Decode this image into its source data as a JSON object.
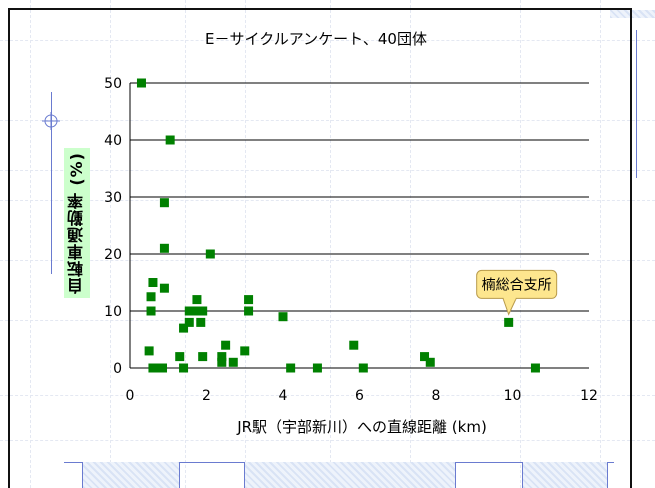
{
  "chart_data": {
    "type": "scatter",
    "title": "E－サイクルアンケート、40団体",
    "xlabel": "JR駅（宇部新川）への直線距離 (km)",
    "ylabel": "自転車通勤率 (%)",
    "xlim": [
      0,
      12
    ],
    "ylim": [
      0,
      50
    ],
    "xticks": [
      "0",
      "2",
      "4",
      "6",
      "8",
      "10",
      "12"
    ],
    "yticks": [
      "0",
      "10",
      "20",
      "30",
      "40",
      "50"
    ],
    "grid": "horizontal",
    "marker_color": "#008000",
    "points": [
      {
        "x": 0.3,
        "y": 50
      },
      {
        "x": 1.05,
        "y": 40
      },
      {
        "x": 0.9,
        "y": 29
      },
      {
        "x": 0.9,
        "y": 21
      },
      {
        "x": 2.1,
        "y": 20
      },
      {
        "x": 0.6,
        "y": 15
      },
      {
        "x": 0.9,
        "y": 14
      },
      {
        "x": 0.55,
        "y": 12.5
      },
      {
        "x": 1.75,
        "y": 12
      },
      {
        "x": 3.1,
        "y": 12
      },
      {
        "x": 0.55,
        "y": 10
      },
      {
        "x": 1.55,
        "y": 10
      },
      {
        "x": 1.7,
        "y": 10
      },
      {
        "x": 1.9,
        "y": 10
      },
      {
        "x": 3.1,
        "y": 10
      },
      {
        "x": 1.55,
        "y": 8
      },
      {
        "x": 1.85,
        "y": 8
      },
      {
        "x": 4.0,
        "y": 9
      },
      {
        "x": 9.9,
        "y": 8
      },
      {
        "x": 1.4,
        "y": 7
      },
      {
        "x": 2.5,
        "y": 4
      },
      {
        "x": 5.85,
        "y": 4
      },
      {
        "x": 0.5,
        "y": 3
      },
      {
        "x": 3.0,
        "y": 3
      },
      {
        "x": 1.3,
        "y": 2
      },
      {
        "x": 1.9,
        "y": 2
      },
      {
        "x": 2.4,
        "y": 2
      },
      {
        "x": 7.7,
        "y": 2
      },
      {
        "x": 2.4,
        "y": 1
      },
      {
        "x": 2.7,
        "y": 1
      },
      {
        "x": 7.85,
        "y": 1
      },
      {
        "x": 0.6,
        "y": 0
      },
      {
        "x": 0.75,
        "y": 0
      },
      {
        "x": 0.85,
        "y": 0
      },
      {
        "x": 1.4,
        "y": 0
      },
      {
        "x": 4.2,
        "y": 0
      },
      {
        "x": 4.9,
        "y": 0
      },
      {
        "x": 6.1,
        "y": 0
      },
      {
        "x": 10.6,
        "y": 0
      }
    ],
    "annotations": [
      {
        "text": "楠総合支所",
        "x": 9.9,
        "y": 8
      }
    ]
  }
}
